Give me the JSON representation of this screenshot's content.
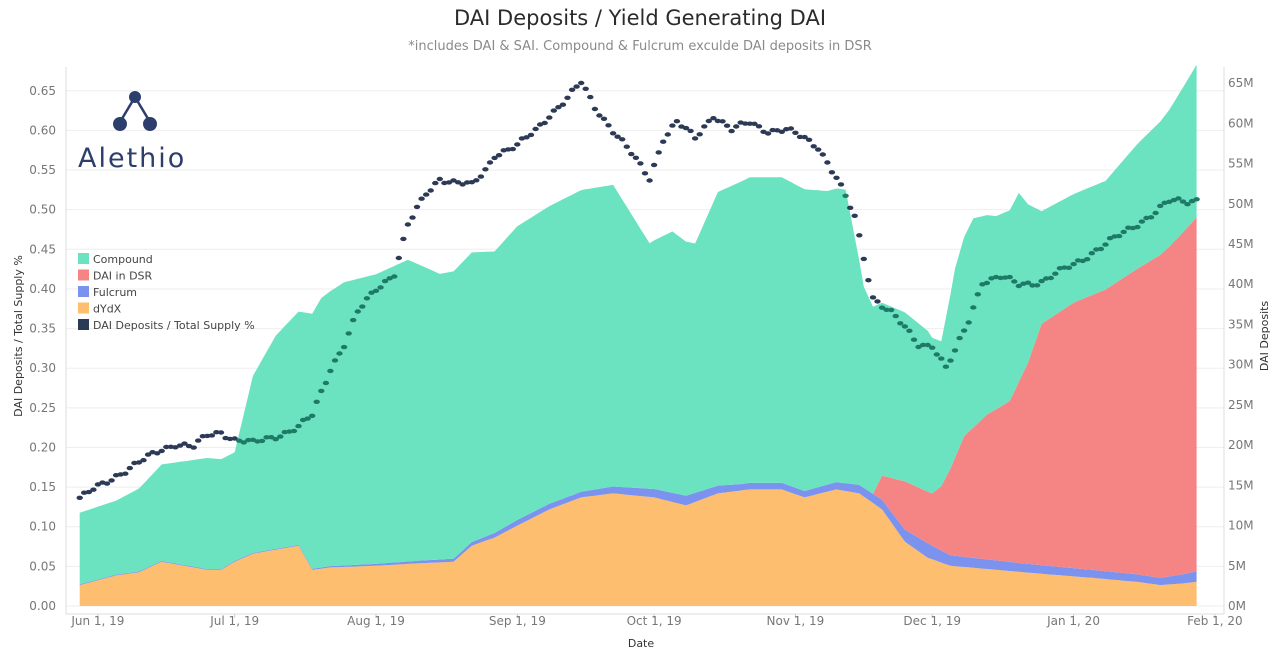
{
  "title": "DAI Deposits / Yield Generating DAI",
  "subtitle": "*includes DAI & SAI. Compound & Fulcrum exculde DAI deposits in DSR",
  "logo": {
    "text": "Alethio"
  },
  "colors": {
    "compound": "#6be3c0",
    "dsr": "#f58585",
    "fulcrum": "#7b93ee",
    "dydx": "#fdbf6f",
    "ratio": "#2c3a55",
    "ratio_alt": "#1e7a66",
    "grid": "#eeeeee",
    "logo": "#2c3e6b"
  },
  "chart_data": {
    "type": "area",
    "title": "DAI Deposits / Yield Generating DAI",
    "subtitle": "*includes DAI & SAI. Compound & Fulcrum exculde DAI deposits in DSR",
    "xlabel": "Date",
    "ylabel_left": "DAI Deposits / Total Supply %",
    "ylabel_right": "DAI Deposits",
    "x_range": [
      "2019-05-25",
      "2020-02-03"
    ],
    "x_ticks": [
      {
        "date": "2019-06-01",
        "label": "Jun 1, 19"
      },
      {
        "date": "2019-07-01",
        "label": "Jul 1, 19"
      },
      {
        "date": "2019-08-01",
        "label": "Aug 1, 19"
      },
      {
        "date": "2019-09-01",
        "label": "Sep 1, 19"
      },
      {
        "date": "2019-10-01",
        "label": "Oct 1, 19"
      },
      {
        "date": "2019-11-01",
        "label": "Nov 1, 19"
      },
      {
        "date": "2019-12-01",
        "label": "Dec 1, 19"
      },
      {
        "date": "2020-01-01",
        "label": "Jan 1, 20"
      },
      {
        "date": "2020-02-01",
        "label": "Feb 1, 20"
      }
    ],
    "ylim_left": [
      0,
      0.68
    ],
    "yticks_left": [
      "0.00",
      "0.05",
      "0.10",
      "0.15",
      "0.20",
      "0.25",
      "0.30",
      "0.35",
      "0.40",
      "0.45",
      "0.50",
      "0.55",
      "0.60",
      "0.65"
    ],
    "ylim_right_millions": [
      0,
      67
    ],
    "yticks_right": [
      {
        "value": 0,
        "label": "0M"
      },
      {
        "value": 5,
        "label": "5M"
      },
      {
        "value": 10,
        "label": "10M"
      },
      {
        "value": 15,
        "label": "15M"
      },
      {
        "value": 20,
        "label": "20M"
      },
      {
        "value": 25,
        "label": "25M"
      },
      {
        "value": 30,
        "label": "30M"
      },
      {
        "value": 35,
        "label": "35M"
      },
      {
        "value": 40,
        "label": "40M"
      },
      {
        "value": 45,
        "label": "45M"
      },
      {
        "value": 50,
        "label": "50M"
      },
      {
        "value": 55,
        "label": "55M"
      },
      {
        "value": 60,
        "label": "60M"
      },
      {
        "value": 65,
        "label": "65M"
      }
    ],
    "grid": true,
    "legend_position": "left",
    "stacked_area_axis": "right (millions)",
    "series": [
      {
        "name": "dYdX",
        "key": "dydx",
        "points": [
          [
            "2019-05-28",
            2.6
          ],
          [
            "2019-06-05",
            3.8
          ],
          [
            "2019-06-10",
            4.2
          ],
          [
            "2019-06-15",
            5.5
          ],
          [
            "2019-06-20",
            5.0
          ],
          [
            "2019-06-25",
            4.5
          ],
          [
            "2019-06-28",
            4.5
          ],
          [
            "2019-07-01",
            5.5
          ],
          [
            "2019-07-05",
            6.5
          ],
          [
            "2019-07-10",
            7.0
          ],
          [
            "2019-07-15",
            7.5
          ],
          [
            "2019-07-18",
            4.5
          ],
          [
            "2019-07-22",
            4.8
          ],
          [
            "2019-08-01",
            5.0
          ],
          [
            "2019-08-10",
            5.3
          ],
          [
            "2019-08-18",
            5.5
          ],
          [
            "2019-08-22",
            7.5
          ],
          [
            "2019-08-27",
            8.5
          ],
          [
            "2019-09-01",
            10.0
          ],
          [
            "2019-09-08",
            12.0
          ],
          [
            "2019-09-15",
            13.5
          ],
          [
            "2019-09-22",
            14.0
          ],
          [
            "2019-10-01",
            13.5
          ],
          [
            "2019-10-08",
            12.5
          ],
          [
            "2019-10-15",
            14.0
          ],
          [
            "2019-10-22",
            14.5
          ],
          [
            "2019-10-29",
            14.5
          ],
          [
            "2019-11-03",
            13.5
          ],
          [
            "2019-11-10",
            14.5
          ],
          [
            "2019-11-15",
            14.0
          ],
          [
            "2019-11-20",
            12.0
          ],
          [
            "2019-11-25",
            8.0
          ],
          [
            "2019-11-30",
            6.0
          ],
          [
            "2019-12-05",
            5.0
          ],
          [
            "2019-12-15",
            4.5
          ],
          [
            "2019-12-25",
            4.0
          ],
          [
            "2020-01-05",
            3.5
          ],
          [
            "2020-01-15",
            3.0
          ],
          [
            "2020-01-20",
            2.6
          ],
          [
            "2020-01-25",
            2.8
          ],
          [
            "2020-01-28",
            3.0
          ]
        ]
      },
      {
        "name": "Fulcrum",
        "key": "fulcrum",
        "points": [
          [
            "2019-05-28",
            0.1
          ],
          [
            "2019-07-15",
            0.1
          ],
          [
            "2019-08-20",
            0.4
          ],
          [
            "2019-09-01",
            0.7
          ],
          [
            "2019-09-15",
            0.7
          ],
          [
            "2019-10-08",
            1.2
          ],
          [
            "2019-10-20",
            0.8
          ],
          [
            "2019-11-03",
            0.8
          ],
          [
            "2019-11-10",
            0.9
          ],
          [
            "2019-11-20",
            1.2
          ],
          [
            "2019-11-25",
            1.5
          ],
          [
            "2019-11-30",
            1.8
          ],
          [
            "2019-12-05",
            1.3
          ],
          [
            "2019-12-20",
            1.1
          ],
          [
            "2020-01-05",
            1.0
          ],
          [
            "2020-01-20",
            0.9
          ],
          [
            "2020-01-28",
            1.3
          ]
        ]
      },
      {
        "name": "DAI in DSR",
        "key": "dsr",
        "points": [
          [
            "2019-05-28",
            0
          ],
          [
            "2019-11-18",
            0
          ],
          [
            "2019-11-20",
            3.0
          ],
          [
            "2019-11-25",
            6.0
          ],
          [
            "2019-12-01",
            6.5
          ],
          [
            "2019-12-03",
            8.0
          ],
          [
            "2019-12-08",
            15.0
          ],
          [
            "2019-12-13",
            18.0
          ],
          [
            "2019-12-18",
            20.0
          ],
          [
            "2019-12-22",
            25.0
          ],
          [
            "2019-12-25",
            30.0
          ],
          [
            "2020-01-01",
            33.0
          ],
          [
            "2020-01-08",
            35.0
          ],
          [
            "2020-01-15",
            38.0
          ],
          [
            "2020-01-22",
            41.0
          ],
          [
            "2020-01-28",
            44.0
          ]
        ]
      },
      {
        "name": "Compound",
        "key": "compound",
        "points": [
          [
            "2019-05-28",
            8.9
          ],
          [
            "2019-06-05",
            9.2
          ],
          [
            "2019-06-10",
            10.3
          ],
          [
            "2019-06-15",
            12.0
          ],
          [
            "2019-06-25",
            13.8
          ],
          [
            "2019-07-01",
            13.5
          ],
          [
            "2019-07-05",
            22.0
          ],
          [
            "2019-07-10",
            26.5
          ],
          [
            "2019-07-15",
            29.0
          ],
          [
            "2019-07-20",
            33.5
          ],
          [
            "2019-07-25",
            35.2
          ],
          [
            "2019-08-01",
            36.0
          ],
          [
            "2019-08-08",
            37.5
          ],
          [
            "2019-08-15",
            35.5
          ],
          [
            "2019-08-22",
            36.0
          ],
          [
            "2019-08-27",
            35.0
          ],
          [
            "2019-09-01",
            36.5
          ],
          [
            "2019-09-08",
            37.0
          ],
          [
            "2019-09-15",
            37.5
          ],
          [
            "2019-09-22",
            37.5
          ],
          [
            "2019-09-30",
            30.5
          ],
          [
            "2019-10-05",
            32.5
          ],
          [
            "2019-10-10",
            31.0
          ],
          [
            "2019-10-15",
            36.5
          ],
          [
            "2019-10-22",
            38.0
          ],
          [
            "2019-10-29",
            38.0
          ],
          [
            "2019-11-03",
            37.5
          ],
          [
            "2019-11-08",
            36.5
          ],
          [
            "2019-11-12",
            36.5
          ],
          [
            "2019-11-16",
            25.0
          ],
          [
            "2019-11-20",
            21.5
          ],
          [
            "2019-11-25",
            21.0
          ],
          [
            "2019-11-30",
            20.0
          ],
          [
            "2019-12-03",
            18.0
          ],
          [
            "2019-12-06",
            23.5
          ],
          [
            "2019-12-10",
            26.0
          ],
          [
            "2019-12-15",
            24.0
          ],
          [
            "2019-12-20",
            23.5
          ],
          [
            "2019-12-25",
            14.0
          ],
          [
            "2020-01-01",
            13.5
          ],
          [
            "2020-01-08",
            13.5
          ],
          [
            "2020-01-15",
            15.5
          ],
          [
            "2020-01-22",
            17.0
          ],
          [
            "2020-01-28",
            19.0
          ]
        ]
      },
      {
        "name": "DAI Deposits / Total Supply %",
        "key": "ratio",
        "axis": "left",
        "style": "dots",
        "points": [
          [
            "2019-05-28",
            0.135
          ],
          [
            "2019-06-01",
            0.15
          ],
          [
            "2019-06-05",
            0.165
          ],
          [
            "2019-06-10",
            0.18
          ],
          [
            "2019-06-15",
            0.198
          ],
          [
            "2019-06-18",
            0.205
          ],
          [
            "2019-06-22",
            0.2
          ],
          [
            "2019-06-25",
            0.215
          ],
          [
            "2019-06-28",
            0.22
          ],
          [
            "2019-07-01",
            0.21
          ],
          [
            "2019-07-05",
            0.205
          ],
          [
            "2019-07-10",
            0.215
          ],
          [
            "2019-07-15",
            0.225
          ],
          [
            "2019-07-18",
            0.24
          ],
          [
            "2019-07-22",
            0.3
          ],
          [
            "2019-07-25",
            0.33
          ],
          [
            "2019-07-28",
            0.37
          ],
          [
            "2019-08-01",
            0.4
          ],
          [
            "2019-08-05",
            0.42
          ],
          [
            "2019-08-08",
            0.48
          ],
          [
            "2019-08-12",
            0.52
          ],
          [
            "2019-08-15",
            0.54
          ],
          [
            "2019-08-18",
            0.535
          ],
          [
            "2019-08-22",
            0.53
          ],
          [
            "2019-08-25",
            0.55
          ],
          [
            "2019-08-27",
            0.57
          ],
          [
            "2019-09-01",
            0.58
          ],
          [
            "2019-09-05",
            0.6
          ],
          [
            "2019-09-08",
            0.62
          ],
          [
            "2019-09-12",
            0.64
          ],
          [
            "2019-09-15",
            0.66
          ],
          [
            "2019-09-18",
            0.63
          ],
          [
            "2019-09-22",
            0.6
          ],
          [
            "2019-09-26",
            0.57
          ],
          [
            "2019-09-30",
            0.54
          ],
          [
            "2019-10-03",
            0.59
          ],
          [
            "2019-10-06",
            0.61
          ],
          [
            "2019-10-10",
            0.59
          ],
          [
            "2019-10-14",
            0.62
          ],
          [
            "2019-10-18",
            0.6
          ],
          [
            "2019-10-22",
            0.61
          ],
          [
            "2019-10-26",
            0.6
          ],
          [
            "2019-10-30",
            0.6
          ],
          [
            "2019-11-03",
            0.59
          ],
          [
            "2019-11-06",
            0.58
          ],
          [
            "2019-11-10",
            0.54
          ],
          [
            "2019-11-14",
            0.49
          ],
          [
            "2019-11-18",
            0.39
          ],
          [
            "2019-11-22",
            0.37
          ],
          [
            "2019-11-25",
            0.35
          ],
          [
            "2019-11-28",
            0.33
          ],
          [
            "2019-12-01",
            0.33
          ],
          [
            "2019-12-04",
            0.3
          ],
          [
            "2019-12-06",
            0.32
          ],
          [
            "2019-12-09",
            0.36
          ],
          [
            "2019-12-12",
            0.41
          ],
          [
            "2019-12-16",
            0.415
          ],
          [
            "2019-12-20",
            0.405
          ],
          [
            "2019-12-25",
            0.41
          ],
          [
            "2020-01-01",
            0.43
          ],
          [
            "2020-01-06",
            0.45
          ],
          [
            "2020-01-12",
            0.47
          ],
          [
            "2020-01-17",
            0.49
          ],
          [
            "2020-01-22",
            0.51
          ],
          [
            "2020-01-26",
            0.51
          ],
          [
            "2020-01-29",
            0.515
          ]
        ]
      }
    ]
  },
  "legend": [
    {
      "label": "Compound",
      "color_key": "compound"
    },
    {
      "label": "DAI in DSR",
      "color_key": "dsr"
    },
    {
      "label": "Fulcrum",
      "color_key": "fulcrum"
    },
    {
      "label": "dYdX",
      "color_key": "dydx"
    },
    {
      "label": "DAI Deposits / Total Supply %",
      "color_key": "ratio"
    }
  ]
}
